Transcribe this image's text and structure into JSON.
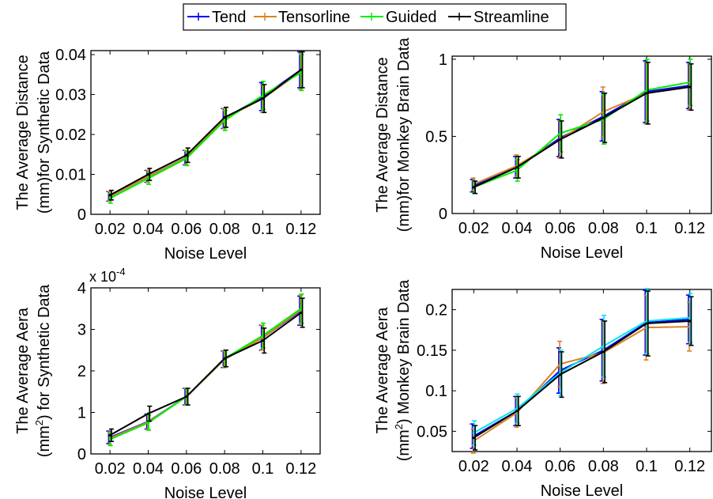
{
  "legend": {
    "placement": "top-center",
    "entries": [
      {
        "name": "Tend",
        "color": "#0000ff"
      },
      {
        "name": "Tensorline",
        "color": "#d98324"
      },
      {
        "name": "Guided",
        "color": "#00ee00"
      },
      {
        "name": "Streamline",
        "color": "#000000"
      }
    ]
  },
  "chart_data": [
    {
      "type": "line",
      "id": "synthetic-distance",
      "xlabel": "Noise Level",
      "ylabel": [
        "The Average Distance",
        "(mm)for Synthetic Data"
      ],
      "ylabel_sup": null,
      "x": [
        0.02,
        0.04,
        0.06,
        0.08,
        0.1,
        0.12
      ],
      "xticks": [
        0.02,
        0.04,
        0.06,
        0.08,
        0.1,
        0.12
      ],
      "xtick_labels": [
        "0.02",
        "0.04",
        "0.06",
        "0.08",
        "0.1",
        "0.12"
      ],
      "xlim": [
        0.01,
        0.13
      ],
      "ylim": [
        0,
        0.041
      ],
      "yticks": [
        0,
        0.01,
        0.02,
        0.03,
        0.04
      ],
      "ytick_labels": [
        "0",
        "0.01",
        "0.02",
        "0.03",
        "0.04"
      ],
      "exponent_label": "",
      "series": [
        {
          "name": "Tend",
          "color": "#0000ff",
          "values": [
            0.0045,
            0.0095,
            0.0142,
            0.024,
            0.0295,
            0.0362
          ],
          "err": [
            0.0012,
            0.0015,
            0.0018,
            0.0025,
            0.0035,
            0.0045
          ]
        },
        {
          "name": "Tensorline",
          "color": "#d98324",
          "values": [
            0.0045,
            0.0095,
            0.0142,
            0.024,
            0.029,
            0.0358
          ],
          "err": [
            0.0012,
            0.0015,
            0.0018,
            0.0025,
            0.0035,
            0.0045
          ]
        },
        {
          "name": "Guided",
          "color": "#00ee00",
          "values": [
            0.004,
            0.009,
            0.014,
            0.0235,
            0.0298,
            0.0355
          ],
          "err": [
            0.0012,
            0.0015,
            0.0018,
            0.0025,
            0.0035,
            0.0045
          ]
        },
        {
          "name": "Streamline",
          "color": "#000000",
          "values": [
            0.0048,
            0.01,
            0.0148,
            0.0243,
            0.029,
            0.0362
          ],
          "err": [
            0.0012,
            0.0015,
            0.0018,
            0.0025,
            0.0035,
            0.0045
          ]
        }
      ]
    },
    {
      "type": "line",
      "id": "monkey-distance",
      "xlabel": "Noise Level",
      "ylabel": [
        "The Average Distance",
        "(mm)for Monkey Brain Data"
      ],
      "ylabel_sup": null,
      "x": [
        0.02,
        0.04,
        0.06,
        0.08,
        0.1,
        0.12
      ],
      "xticks": [
        0.02,
        0.04,
        0.06,
        0.08,
        0.1,
        0.12
      ],
      "xtick_labels": [
        "0.02",
        "0.04",
        "0.06",
        "0.08",
        "0.1",
        "0.12"
      ],
      "xlim": [
        0.01,
        0.13
      ],
      "ylim": [
        0,
        1.02
      ],
      "yticks": [
        0,
        0.5,
        1
      ],
      "ytick_labels": [
        "0",
        "0.5",
        "1"
      ],
      "exponent_label": "",
      "series": [
        {
          "name": "Tend",
          "color": "#0000ff",
          "values": [
            0.18,
            0.3,
            0.49,
            0.63,
            0.79,
            0.83
          ],
          "err": [
            0.04,
            0.07,
            0.12,
            0.16,
            0.2,
            0.15
          ]
        },
        {
          "name": "Tensorline",
          "color": "#d98324",
          "values": [
            0.19,
            0.31,
            0.48,
            0.66,
            0.78,
            0.82
          ],
          "err": [
            0.04,
            0.07,
            0.12,
            0.16,
            0.2,
            0.15
          ]
        },
        {
          "name": "Guided",
          "color": "#00ee00",
          "values": [
            0.17,
            0.28,
            0.52,
            0.61,
            0.8,
            0.85
          ],
          "err": [
            0.04,
            0.07,
            0.12,
            0.16,
            0.2,
            0.15
          ]
        },
        {
          "name": "Streamline",
          "color": "#000000",
          "values": [
            0.17,
            0.3,
            0.48,
            0.62,
            0.78,
            0.82
          ],
          "err": [
            0.04,
            0.07,
            0.12,
            0.16,
            0.2,
            0.15
          ]
        }
      ]
    },
    {
      "type": "line",
      "id": "synthetic-area",
      "xlabel": "Noise Level",
      "ylabel": [
        "The Average Aera",
        "(mm) for Synthetic Data"
      ],
      "ylabel_sup": "2",
      "x": [
        0.02,
        0.04,
        0.06,
        0.08,
        0.1,
        0.12
      ],
      "xticks": [
        0.02,
        0.04,
        0.06,
        0.08,
        0.1,
        0.12
      ],
      "xtick_labels": [
        "0.02",
        "0.04",
        "0.06",
        "0.08",
        "0.1",
        "0.12"
      ],
      "xlim": [
        0.01,
        0.13
      ],
      "ylim": [
        0,
        4
      ],
      "yticks": [
        0,
        1,
        2,
        3,
        4
      ],
      "ytick_labels": [
        "0",
        "1",
        "2",
        "3",
        "4"
      ],
      "exponent_label": "x 10",
      "exponent_power": "-4",
      "series": [
        {
          "name": "Tend",
          "color": "#0000ff",
          "values": [
            0.4,
            0.78,
            1.38,
            2.28,
            2.8,
            3.45
          ],
          "err": [
            0.15,
            0.18,
            0.2,
            0.2,
            0.3,
            0.35
          ]
        },
        {
          "name": "Tensorline",
          "color": "#d98324",
          "values": [
            0.38,
            0.77,
            1.38,
            2.28,
            2.8,
            3.47
          ],
          "err": [
            0.15,
            0.18,
            0.2,
            0.2,
            0.3,
            0.35
          ]
        },
        {
          "name": "Guided",
          "color": "#00ee00",
          "values": [
            0.35,
            0.75,
            1.38,
            2.3,
            2.85,
            3.5
          ],
          "err": [
            0.15,
            0.18,
            0.2,
            0.2,
            0.3,
            0.35
          ]
        },
        {
          "name": "Streamline",
          "color": "#000000",
          "values": [
            0.45,
            0.97,
            1.38,
            2.3,
            2.73,
            3.4
          ],
          "err": [
            0.15,
            0.18,
            0.2,
            0.2,
            0.3,
            0.35
          ]
        }
      ]
    },
    {
      "type": "line",
      "id": "monkey-area",
      "xlabel": "Noise Level",
      "ylabel": [
        "The Average Aera",
        "(mm) Monkey Brain Data"
      ],
      "ylabel_sup": "2",
      "x": [
        0.02,
        0.04,
        0.06,
        0.08,
        0.1,
        0.12
      ],
      "xticks": [
        0.02,
        0.04,
        0.06,
        0.08,
        0.1,
        0.12
      ],
      "xtick_labels": [
        "0.02",
        "0.04",
        "0.06",
        "0.08",
        "0.1",
        "0.12"
      ],
      "xlim": [
        0.01,
        0.13
      ],
      "ylim": [
        0.025,
        0.225
      ],
      "yticks": [
        0.05,
        0.1,
        0.15,
        0.2
      ],
      "ytick_labels": [
        "0.05",
        "0.1",
        "0.15",
        "0.2"
      ],
      "exponent_label": "",
      "series": [
        {
          "name": "Tend",
          "color": "#0000ff",
          "values": [
            0.044,
            0.075,
            0.125,
            0.15,
            0.184,
            0.188
          ],
          "err": [
            0.015,
            0.018,
            0.028,
            0.038,
            0.04,
            0.03
          ]
        },
        {
          "name": "Tensorline",
          "color": "#d98324",
          "values": [
            0.038,
            0.073,
            0.133,
            0.147,
            0.178,
            0.179
          ],
          "err": [
            0.015,
            0.018,
            0.028,
            0.038,
            0.04,
            0.03
          ]
        },
        {
          "name": "Guided",
          "color": "#00e5ee",
          "values": [
            0.048,
            0.078,
            0.122,
            0.155,
            0.186,
            0.19
          ],
          "err": [
            0.015,
            0.018,
            0.028,
            0.038,
            0.04,
            0.03
          ]
        },
        {
          "name": "Streamline",
          "color": "#000000",
          "values": [
            0.042,
            0.075,
            0.12,
            0.148,
            0.183,
            0.186
          ],
          "err": [
            0.015,
            0.018,
            0.028,
            0.038,
            0.04,
            0.03
          ]
        }
      ]
    }
  ]
}
